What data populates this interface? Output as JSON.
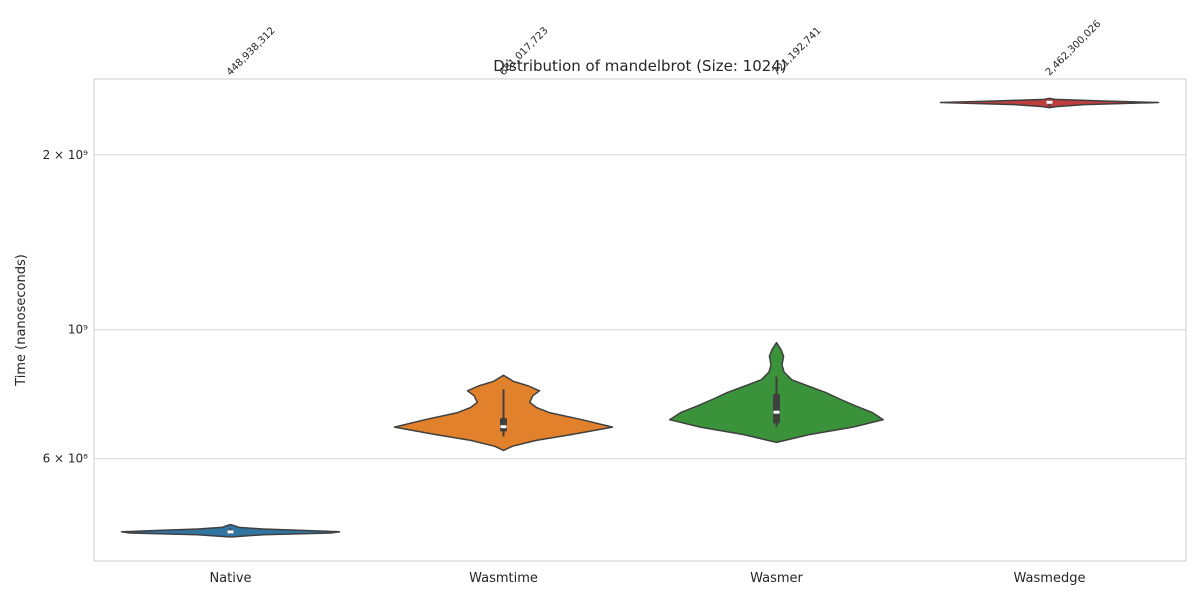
{
  "chart_data": {
    "type": "violin",
    "title": "Distribution of mandelbrot (Size: 1024)",
    "xlabel": "",
    "ylabel": "Time (nanoseconds)",
    "yscale": "log",
    "ylim": [
      400000000,
      2700000000
    ],
    "yticks": [
      {
        "value": 600000000,
        "label": "6 × 10⁸"
      },
      {
        "value": 1000000000,
        "label": "10⁹"
      },
      {
        "value": 2000000000,
        "label": "2 × 10⁹"
      }
    ],
    "grid": true,
    "categories": [
      "Native",
      "Wasmtime",
      "Wasmer",
      "Wasmedge"
    ],
    "series": [
      {
        "category": "Native",
        "color": "#3274a1",
        "median": 448938312,
        "median_label": "448,938,312",
        "q1": 447000000,
        "q3": 452000000,
        "whisker_low": 446000000,
        "whisker_high": 455000000,
        "profile": [
          [
            440000000,
            0.02
          ],
          [
            444000000,
            0.3
          ],
          [
            447000000,
            0.92
          ],
          [
            449000000,
            1.0
          ],
          [
            451000000,
            0.75
          ],
          [
            454000000,
            0.3
          ],
          [
            457000000,
            0.08
          ],
          [
            460000000,
            0.035
          ],
          [
            462000000,
            0.0
          ]
        ]
      },
      {
        "category": "Wasmtime",
        "color": "#e1812c",
        "median": 681017723,
        "median_label": "681,017,723",
        "q1": 668000000,
        "q3": 705000000,
        "whisker_low": 655000000,
        "whisker_high": 790000000,
        "profile": [
          [
            620000000,
            0.0
          ],
          [
            630000000,
            0.08
          ],
          [
            645000000,
            0.3
          ],
          [
            660000000,
            0.62
          ],
          [
            680000000,
            1.0
          ],
          [
            700000000,
            0.72
          ],
          [
            720000000,
            0.42
          ],
          [
            735000000,
            0.3
          ],
          [
            750000000,
            0.24
          ],
          [
            770000000,
            0.27
          ],
          [
            785000000,
            0.33
          ],
          [
            800000000,
            0.23
          ],
          [
            815000000,
            0.09
          ],
          [
            835000000,
            0.0
          ]
        ]
      },
      {
        "category": "Wasmer",
        "color": "#3a923a",
        "median": 721192741,
        "median_label": "721,192,741",
        "q1": 690000000,
        "q3": 775000000,
        "whisker_low": 680000000,
        "whisker_high": 830000000,
        "profile": [
          [
            640000000,
            0.0
          ],
          [
            660000000,
            0.3
          ],
          [
            680000000,
            0.7
          ],
          [
            700000000,
            0.98
          ],
          [
            720000000,
            0.88
          ],
          [
            740000000,
            0.72
          ],
          [
            760000000,
            0.58
          ],
          [
            780000000,
            0.45
          ],
          [
            800000000,
            0.29
          ],
          [
            820000000,
            0.14
          ],
          [
            845000000,
            0.07
          ],
          [
            870000000,
            0.05
          ],
          [
            900000000,
            0.065
          ],
          [
            925000000,
            0.04
          ],
          [
            950000000,
            0.0
          ]
        ]
      },
      {
        "category": "Wasmedge",
        "color": "#c03d3e",
        "median": 2462300026,
        "median_label": "2,462,300,026",
        "q1": 2455000000,
        "q3": 2470000000,
        "whisker_low": 2420000000,
        "whisker_high": 2480000000,
        "profile": [
          [
            2410000000,
            0.0
          ],
          [
            2420000000,
            0.06
          ],
          [
            2440000000,
            0.32
          ],
          [
            2460000000,
            1.0
          ],
          [
            2475000000,
            0.5
          ],
          [
            2490000000,
            0.05
          ],
          [
            2500000000,
            0.0
          ]
        ]
      }
    ]
  }
}
